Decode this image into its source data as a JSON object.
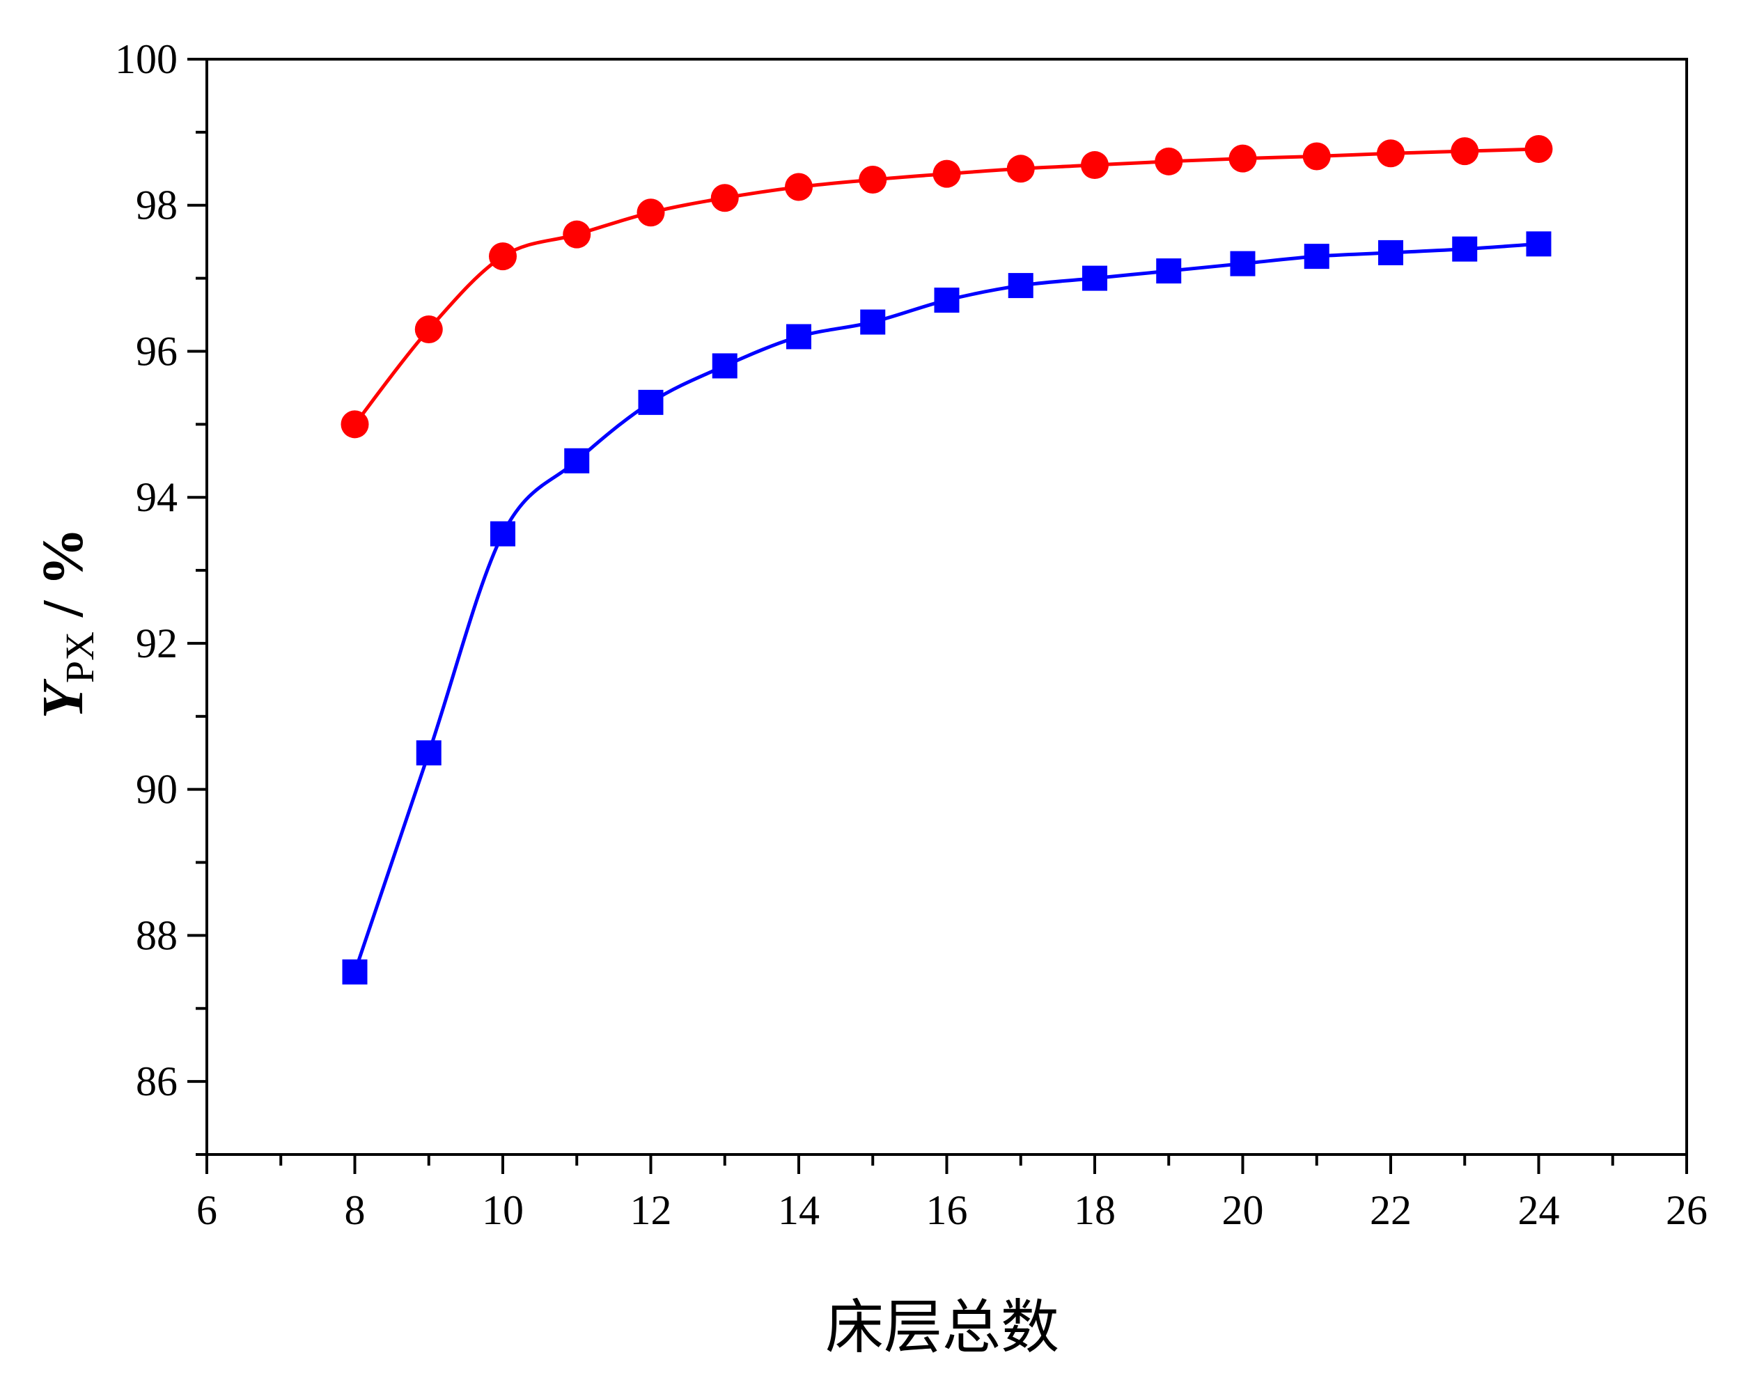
{
  "chart_data": {
    "type": "line",
    "xlabel": "床层总数",
    "ylabel": {
      "symbol": "Y",
      "subscript": "PX",
      "unit": " / %"
    },
    "xlim": [
      6,
      26
    ],
    "ylim": [
      85,
      100
    ],
    "xticks": [
      "6",
      "8",
      "10",
      "12",
      "14",
      "16",
      "18",
      "20",
      "22",
      "24",
      "26"
    ],
    "yticks": [
      "86",
      "88",
      "90",
      "92",
      "94",
      "96",
      "98",
      "100"
    ],
    "grid": false,
    "x": [
      8,
      9,
      10,
      11,
      12,
      13,
      14,
      15,
      16,
      17,
      18,
      19,
      20,
      21,
      22,
      23,
      24
    ],
    "series": [
      {
        "marker": "circle",
        "color": "#ff0000",
        "values": [
          95.0,
          96.3,
          97.3,
          97.6,
          97.9,
          98.1,
          98.25,
          98.35,
          98.43,
          98.5,
          98.55,
          98.6,
          98.64,
          98.67,
          98.71,
          98.74,
          98.77
        ]
      },
      {
        "marker": "square",
        "color": "#0000ff",
        "values": [
          87.5,
          90.5,
          93.5,
          94.5,
          95.3,
          95.8,
          96.2,
          96.4,
          96.7,
          96.9,
          97.0,
          97.1,
          97.2,
          97.3,
          97.35,
          97.4,
          97.47
        ]
      }
    ]
  }
}
